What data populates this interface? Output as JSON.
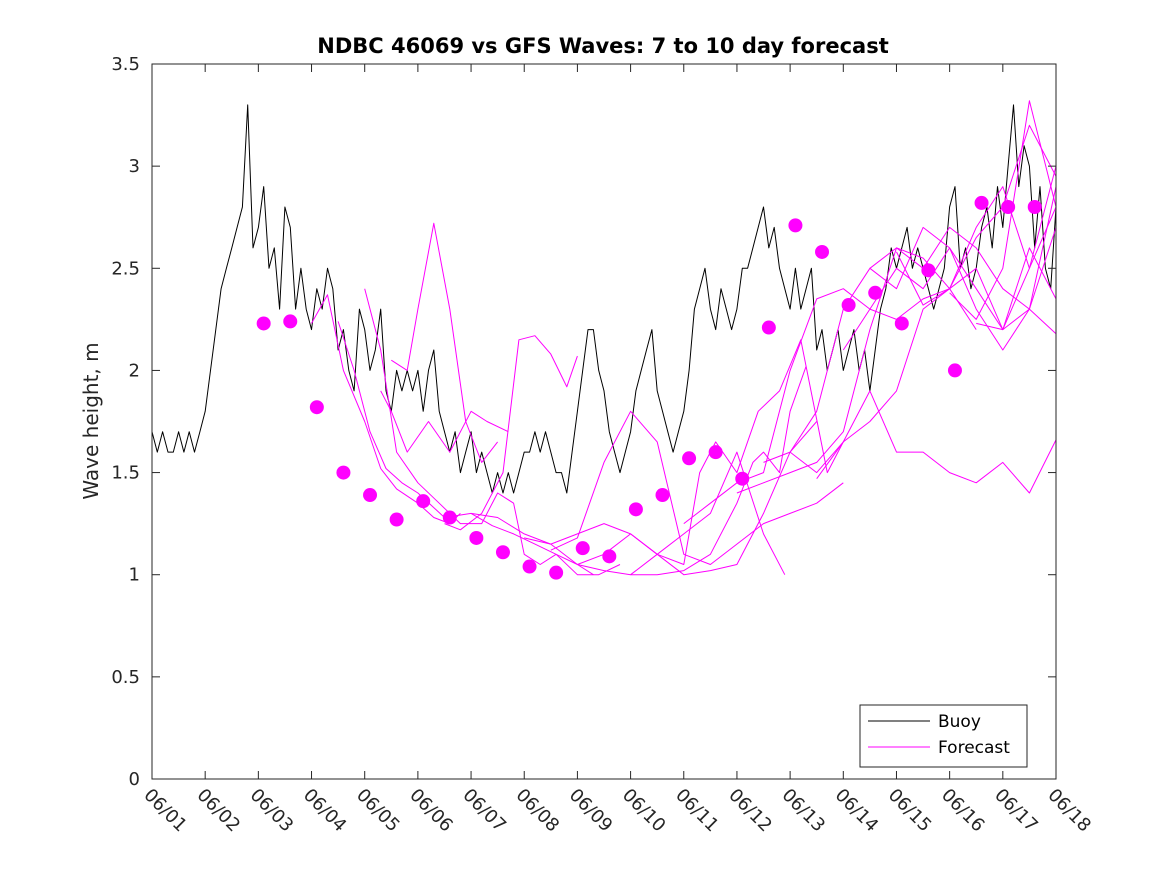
{
  "chart_data": {
    "type": "line",
    "title": "NDBC 46069 vs GFS Waves: 7 to 10 day forecast",
    "xlabel": "",
    "ylabel": "Wave height, m",
    "x_tick_labels": [
      "06/01",
      "06/02",
      "06/03",
      "06/04",
      "06/05",
      "06/06",
      "06/07",
      "06/08",
      "06/09",
      "06/10",
      "06/11",
      "06/12",
      "06/13",
      "06/14",
      "06/15",
      "06/16",
      "06/17",
      "06/18"
    ],
    "xlim": [
      0,
      17
    ],
    "ylim": [
      0,
      3.5
    ],
    "y_ticks": [
      0,
      0.5,
      1,
      1.5,
      2,
      2.5,
      3,
      3.5
    ],
    "y_tick_labels": [
      "0",
      "0.5",
      "1",
      "1.5",
      "2",
      "2.5",
      "3",
      "3.5"
    ],
    "x_units": "days since 06/01",
    "legend": {
      "placement": "bottom-right",
      "entries": [
        {
          "label": "Buoy",
          "color": "#000000"
        },
        {
          "label": "Forecast",
          "color": "#ff00ff"
        }
      ]
    },
    "colors": {
      "buoy": "#000000",
      "forecast": "#ff00ff",
      "axes": "#262626"
    },
    "series": [
      {
        "name": "Buoy",
        "color": "#000000",
        "x": [
          0,
          0.1,
          0.2,
          0.3,
          0.4,
          0.5,
          0.6,
          0.7,
          0.8,
          0.9,
          1,
          1.1,
          1.2,
          1.3,
          1.4,
          1.5,
          1.6,
          1.7,
          1.8,
          1.9,
          2,
          2.1,
          2.2,
          2.3,
          2.4,
          2.5,
          2.6,
          2.7,
          2.8,
          2.9,
          3,
          3.1,
          3.2,
          3.3,
          3.4,
          3.5,
          3.6,
          3.7,
          3.8,
          3.9,
          4,
          4.1,
          4.2,
          4.3,
          4.4,
          4.5,
          4.6,
          4.7,
          4.8,
          4.9,
          5,
          5.1,
          5.2,
          5.3,
          5.4,
          5.5,
          5.6,
          5.7,
          5.8,
          5.9,
          6,
          6.1,
          6.2,
          6.3,
          6.4,
          6.5,
          6.6,
          6.7,
          6.8,
          6.9,
          7,
          7.1,
          7.2,
          7.3,
          7.4,
          7.5,
          7.6,
          7.7,
          7.8,
          7.9,
          8,
          8.1,
          8.2,
          8.3,
          8.4,
          8.5,
          8.6,
          8.7,
          8.8,
          8.9,
          9,
          9.1,
          9.2,
          9.3,
          9.4,
          9.5,
          9.6,
          9.7,
          9.8,
          9.9,
          10,
          10.1,
          10.2,
          10.3,
          10.4,
          10.5,
          10.6,
          10.7,
          10.8,
          10.9,
          11,
          11.1,
          11.2,
          11.3,
          11.4,
          11.5,
          11.6,
          11.7,
          11.8,
          11.9,
          12,
          12.1,
          12.2,
          12.3,
          12.4,
          12.5,
          12.6,
          12.7,
          12.8,
          12.9,
          13,
          13.1,
          13.2,
          13.3,
          13.4,
          13.5,
          13.6,
          13.7,
          13.8,
          13.9,
          14,
          14.1,
          14.2,
          14.3,
          14.4,
          14.5,
          14.6,
          14.7,
          14.8,
          14.9,
          15,
          15.1,
          15.2,
          15.3,
          15.4,
          15.5,
          15.6,
          15.7,
          15.8,
          15.9,
          16,
          16.1,
          16.2,
          16.3,
          16.4,
          16.5,
          16.6,
          16.7,
          16.8,
          16.9,
          17
        ],
        "values": [
          1.7,
          1.6,
          1.7,
          1.6,
          1.6,
          1.7,
          1.6,
          1.7,
          1.6,
          1.7,
          1.8,
          2.0,
          2.2,
          2.4,
          2.5,
          2.6,
          2.7,
          2.8,
          3.3,
          2.6,
          2.7,
          2.9,
          2.5,
          2.6,
          2.3,
          2.8,
          2.7,
          2.3,
          2.5,
          2.3,
          2.2,
          2.4,
          2.3,
          2.5,
          2.4,
          2.1,
          2.2,
          2.0,
          1.9,
          2.3,
          2.2,
          2.0,
          2.1,
          2.3,
          1.9,
          1.8,
          2.0,
          1.9,
          2.0,
          1.9,
          2.0,
          1.8,
          2.0,
          2.1,
          1.8,
          1.7,
          1.6,
          1.7,
          1.5,
          1.6,
          1.7,
          1.5,
          1.6,
          1.5,
          1.4,
          1.5,
          1.4,
          1.5,
          1.4,
          1.5,
          1.6,
          1.6,
          1.7,
          1.6,
          1.7,
          1.6,
          1.5,
          1.5,
          1.4,
          1.6,
          1.8,
          2.0,
          2.2,
          2.2,
          2.0,
          1.9,
          1.7,
          1.6,
          1.5,
          1.6,
          1.7,
          1.9,
          2.0,
          2.1,
          2.2,
          1.9,
          1.8,
          1.7,
          1.6,
          1.7,
          1.8,
          2.0,
          2.3,
          2.4,
          2.5,
          2.3,
          2.2,
          2.4,
          2.3,
          2.2,
          2.3,
          2.5,
          2.5,
          2.6,
          2.7,
          2.8,
          2.6,
          2.7,
          2.5,
          2.4,
          2.3,
          2.5,
          2.3,
          2.4,
          2.5,
          2.1,
          2.2,
          2.0,
          2.1,
          2.2,
          2.0,
          2.1,
          2.2,
          2.0,
          2.1,
          1.9,
          2.1,
          2.3,
          2.4,
          2.6,
          2.5,
          2.6,
          2.7,
          2.5,
          2.6,
          2.5,
          2.4,
          2.3,
          2.4,
          2.5,
          2.8,
          2.9,
          2.5,
          2.6,
          2.4,
          2.5,
          2.7,
          2.8,
          2.6,
          2.9,
          2.7,
          3.0,
          3.3,
          2.9,
          3.1,
          3.0,
          2.6,
          2.9,
          2.5,
          2.4,
          2.8
        ]
      },
      {
        "name": "Forecast",
        "color": "#ff00ff",
        "x": [
          3.0,
          3.3,
          3.6,
          4.0,
          4.3,
          4.6,
          5.0,
          5.3,
          5.6,
          5.8
        ],
        "values": [
          2.23,
          2.37,
          2.0,
          1.75,
          1.52,
          1.42,
          1.35,
          1.28,
          1.25,
          1.3
        ]
      },
      {
        "name": "Forecast",
        "color": "#ff00ff",
        "x": [
          3.5,
          3.8,
          4.1,
          4.4,
          4.7,
          5.0,
          5.5,
          6.0,
          6.5,
          7.0,
          7.5,
          8.0,
          8.3
        ],
        "values": [
          2.24,
          2.0,
          1.7,
          1.52,
          1.45,
          1.4,
          1.28,
          1.3,
          1.28,
          1.2,
          1.15,
          1.05,
          1.0
        ]
      },
      {
        "name": "Forecast",
        "color": "#ff00ff",
        "x": [
          4.0,
          4.3,
          4.6,
          5.0,
          5.4,
          5.8,
          6.2,
          6.5,
          6.8,
          7.0,
          7.3,
          7.6,
          8.0,
          8.4,
          8.8
        ],
        "values": [
          2.4,
          2.1,
          1.6,
          1.45,
          1.35,
          1.25,
          1.25,
          1.4,
          1.35,
          1.1,
          1.05,
          1.1,
          1.0,
          1.0,
          1.05
        ]
      },
      {
        "name": "Forecast",
        "color": "#ff00ff",
        "x": [
          4.5,
          4.8,
          5.0,
          5.3,
          5.6,
          5.9,
          6.2,
          6.5
        ],
        "values": [
          2.05,
          2.0,
          2.3,
          2.72,
          2.3,
          1.75,
          1.55,
          1.65
        ]
      },
      {
        "name": "Forecast",
        "color": "#ff00ff",
        "x": [
          4.3,
          4.5,
          4.8,
          5.2,
          5.6,
          6.0,
          6.3,
          6.7
        ],
        "values": [
          1.9,
          1.8,
          1.6,
          1.75,
          1.6,
          1.8,
          1.75,
          1.7
        ]
      },
      {
        "name": "Forecast",
        "color": "#ff00ff",
        "x": [
          5.5,
          5.8,
          6.2,
          6.6,
          6.9,
          7.2,
          7.5,
          7.8,
          8.0
        ],
        "values": [
          1.25,
          1.22,
          1.3,
          1.5,
          2.15,
          2.17,
          2.08,
          1.92,
          2.07
        ]
      },
      {
        "name": "Forecast",
        "color": "#ff00ff",
        "x": [
          6.0,
          6.4,
          6.8,
          7.2,
          7.6,
          8.0,
          8.5,
          9.0,
          9.5,
          10.0,
          10.5,
          11.0,
          11.3,
          11.5,
          11.8,
          12.0,
          12.3
        ],
        "values": [
          1.3,
          1.24,
          1.2,
          1.15,
          1.1,
          1.05,
          1.02,
          1.0,
          1.0,
          1.02,
          1.1,
          1.35,
          1.55,
          1.6,
          1.5,
          1.8,
          2.02
        ]
      },
      {
        "name": "Forecast",
        "color": "#ff00ff",
        "x": [
          7.0,
          7.5,
          8.0,
          8.5,
          9.0,
          9.5,
          10.0,
          10.5,
          11.0,
          11.5,
          12.0,
          12.5
        ],
        "values": [
          1.18,
          1.15,
          1.2,
          1.25,
          1.2,
          1.1,
          1.0,
          1.02,
          1.05,
          1.3,
          1.6,
          1.75
        ]
      },
      {
        "name": "Forecast",
        "color": "#ff00ff",
        "x": [
          7.5,
          8.0,
          8.5,
          9.0,
          9.5,
          10.0,
          10.5,
          11.0,
          11.5,
          12.0,
          12.5,
          13.0
        ],
        "values": [
          1.12,
          1.18,
          1.55,
          1.8,
          1.65,
          1.1,
          1.05,
          1.15,
          1.25,
          1.3,
          1.35,
          1.45
        ]
      },
      {
        "name": "Forecast",
        "color": "#ff00ff",
        "x": [
          8.0,
          8.5,
          9.0,
          9.5,
          10.0,
          10.3,
          10.6,
          11.0,
          11.4,
          11.8,
          12.2,
          12.7,
          13.0
        ],
        "values": [
          1.05,
          1.1,
          1.2,
          1.1,
          1.05,
          1.5,
          1.65,
          1.5,
          1.8,
          1.9,
          2.15,
          1.5,
          1.65
        ]
      },
      {
        "name": "Forecast",
        "color": "#ff00ff",
        "x": [
          9.0,
          9.5,
          10.0,
          10.5,
          11.0,
          11.5,
          11.9
        ],
        "values": [
          1.0,
          1.1,
          1.2,
          1.3,
          1.6,
          1.2,
          1.0
        ]
      },
      {
        "name": "Forecast",
        "color": "#ff00ff",
        "x": [
          10.0,
          10.5,
          11.0,
          11.5,
          12.0,
          12.5,
          13.0,
          13.5,
          14.0,
          14.5,
          15.0,
          15.5
        ],
        "values": [
          1.25,
          1.35,
          1.45,
          1.5,
          2.0,
          2.35,
          2.4,
          2.3,
          2.25,
          2.35,
          2.4,
          2.2
        ]
      },
      {
        "name": "Forecast",
        "color": "#ff00ff",
        "x": [
          11.0,
          11.5,
          12.0,
          12.5,
          13.0,
          13.5,
          14.0,
          14.5,
          15.0,
          15.5,
          16.0,
          16.5,
          17.0
        ],
        "values": [
          1.4,
          1.45,
          1.5,
          1.55,
          1.7,
          2.2,
          2.6,
          2.5,
          2.7,
          2.6,
          2.4,
          2.3,
          2.9
        ]
      },
      {
        "name": "Forecast",
        "color": "#ff00ff",
        "x": [
          11.5,
          12.0,
          12.5,
          13.0,
          13.5,
          14.0,
          14.5,
          15.0,
          15.5,
          16.0,
          16.5,
          17.0
        ],
        "values": [
          1.55,
          1.6,
          1.8,
          2.3,
          2.5,
          2.4,
          2.7,
          2.6,
          2.4,
          2.2,
          2.5,
          3.0
        ]
      },
      {
        "name": "Forecast",
        "color": "#ff00ff",
        "x": [
          12.0,
          12.5,
          13.0,
          13.5,
          14.0,
          14.5,
          15.0,
          15.5,
          16.0,
          16.5,
          17.0
        ],
        "values": [
          1.6,
          1.5,
          1.65,
          1.9,
          1.6,
          1.6,
          1.5,
          1.45,
          1.55,
          1.4,
          1.66
        ]
      },
      {
        "name": "Forecast",
        "color": "#ff00ff",
        "x": [
          12.5,
          13.0,
          13.5,
          14.0,
          14.5,
          15.0,
          15.5,
          16.0,
          16.5,
          17.0
        ],
        "values": [
          1.47,
          1.65,
          1.75,
          1.9,
          2.3,
          2.4,
          2.5,
          2.2,
          2.6,
          2.35
        ]
      },
      {
        "name": "Forecast",
        "color": "#ff00ff",
        "x": [
          13.0,
          13.5,
          14.0,
          14.5,
          15.0,
          15.5,
          16.0,
          16.5,
          17.0
        ],
        "values": [
          2.1,
          2.3,
          2.5,
          2.4,
          2.6,
          2.3,
          2.1,
          2.3,
          2.7
        ]
      },
      {
        "name": "Forecast",
        "color": "#ff00ff",
        "x": [
          13.5,
          14.0,
          14.5,
          15.0,
          15.5,
          16.0,
          16.5,
          17.0
        ],
        "values": [
          2.5,
          2.6,
          2.55,
          2.4,
          2.7,
          2.9,
          2.5,
          2.8
        ]
      },
      {
        "name": "Forecast",
        "color": "#ff00ff",
        "x": [
          14.0,
          14.5,
          15.0,
          15.5,
          16.0,
          16.5,
          17.0
        ],
        "values": [
          2.58,
          2.32,
          2.4,
          2.65,
          2.8,
          3.2,
          2.95
        ]
      },
      {
        "name": "Forecast",
        "color": "#ff00ff",
        "x": [
          15.0,
          15.5,
          16.0,
          16.5,
          17.0
        ],
        "values": [
          2.38,
          2.25,
          2.5,
          3.32,
          2.8
        ]
      },
      {
        "name": "Forecast",
        "color": "#ff00ff",
        "x": [
          15.5,
          16.0,
          16.5,
          17.0
        ],
        "values": [
          2.23,
          2.2,
          2.3,
          2.18
        ]
      }
    ],
    "markers": {
      "name": "Forecast",
      "color": "#ff00ff",
      "x": [
        2.1,
        2.6,
        3.1,
        3.6,
        4.1,
        4.6,
        5.1,
        5.6,
        6.1,
        6.6,
        7.1,
        7.6,
        8.1,
        8.6,
        9.1,
        9.6,
        10.1,
        10.6,
        11.1,
        11.6,
        12.1,
        12.6,
        13.1,
        13.6,
        14.1,
        14.6,
        15.1,
        15.6,
        16.1,
        16.6
      ],
      "values": [
        2.23,
        2.24,
        1.82,
        1.5,
        1.39,
        1.27,
        1.36,
        1.28,
        1.18,
        1.11,
        1.04,
        1.01,
        1.13,
        1.09,
        1.32,
        1.39,
        1.57,
        1.6,
        1.47,
        2.21,
        2.71,
        2.58,
        2.32,
        2.38,
        2.23,
        2.49,
        2.0,
        2.82,
        2.8,
        2.8
      ]
    }
  }
}
